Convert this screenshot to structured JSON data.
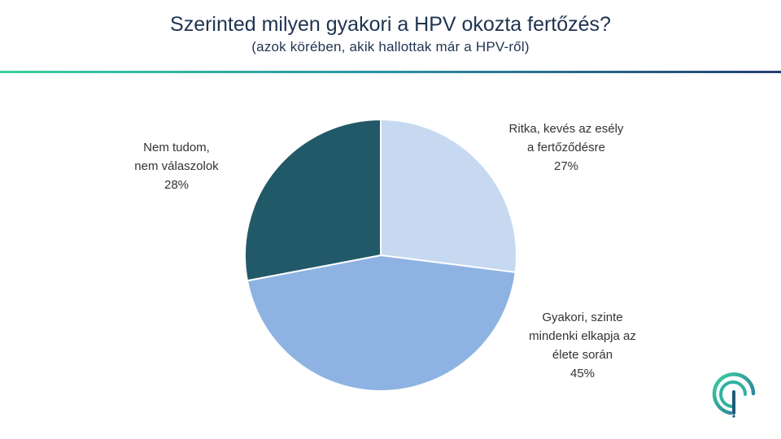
{
  "header": {
    "title": "Szerinted milyen gyakori a HPV okozta fertőzés?",
    "subtitle": "(azok körében, akik hallottak már a HPV-ről)"
  },
  "colors": {
    "accent_gradient": [
      "#3ad0a0",
      "#2a8fa0",
      "#233f73"
    ]
  },
  "chart_data": {
    "type": "pie",
    "title": "Szerinted milyen gyakori a HPV okozta fertőzés?",
    "subtitle": "(azok körében, akik hallottak már a HPV-ről)",
    "start": "12 o'clock, clockwise",
    "slices": [
      {
        "label_lines": [
          "Ritka, kevés az esély",
          "a fertőződésre"
        ],
        "value": 27,
        "value_label": "27%",
        "color": "#c6d9f1"
      },
      {
        "label_lines": [
          "Gyakori, szinte",
          "mindenki elkapja az",
          "élete során"
        ],
        "value": 45,
        "value_label": "45%",
        "color": "#8eb3e3"
      },
      {
        "label_lines": [
          "Nem tudom,",
          "nem válaszolok"
        ],
        "value": 28,
        "value_label": "28%",
        "color": "#215968"
      }
    ],
    "legend": "none"
  },
  "logo": {
    "icon": "brand-logo-icon"
  }
}
